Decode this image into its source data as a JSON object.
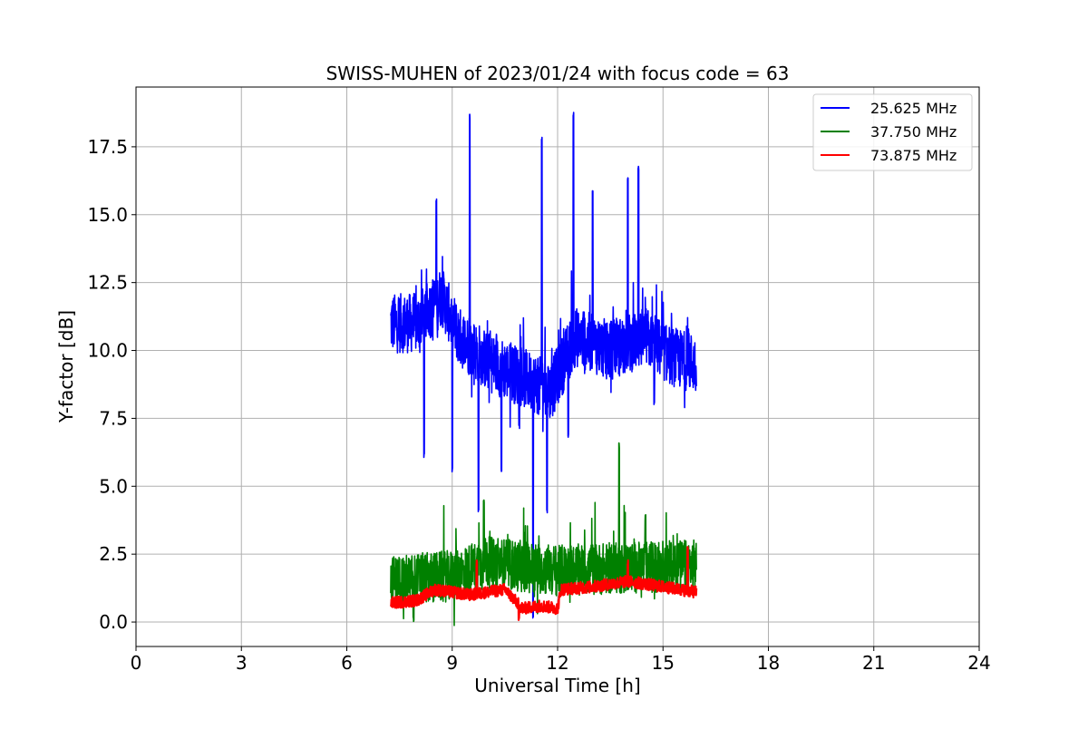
{
  "chart_data": {
    "type": "line",
    "title": "SWISS-MUHEN of 2023/01/24 with focus code = 63",
    "xlabel": "Universal Time [h]",
    "ylabel": "Y-factor [dB]",
    "xlim": [
      0,
      24
    ],
    "ylim": [
      -0.9,
      19.7
    ],
    "x_ticks": [
      0,
      3,
      6,
      9,
      12,
      15,
      18,
      21,
      24
    ],
    "x_tick_labels": [
      "0",
      "3",
      "6",
      "9",
      "12",
      "15",
      "18",
      "21",
      "24"
    ],
    "y_ticks": [
      0,
      2.5,
      5,
      7.5,
      10,
      12.5,
      15,
      17.5
    ],
    "y_tick_labels": [
      "0.0",
      "2.5",
      "5.0",
      "7.5",
      "10.0",
      "12.5",
      "15.0",
      "17.5"
    ],
    "grid": true,
    "legend_position": "top-right",
    "series": [
      {
        "name": "25.625 MHz",
        "color": "#0000ff",
        "x_range": [
          7.25,
          15.95
        ],
        "baseline": [
          [
            7.25,
            11.0
          ],
          [
            8.0,
            11.0
          ],
          [
            8.7,
            12.0
          ],
          [
            9.2,
            10.5
          ],
          [
            10.0,
            9.6
          ],
          [
            11.0,
            9.0
          ],
          [
            11.8,
            8.5
          ],
          [
            12.5,
            10.5
          ],
          [
            13.5,
            10.0
          ],
          [
            14.5,
            10.5
          ],
          [
            15.2,
            9.8
          ],
          [
            15.95,
            9.5
          ]
        ],
        "peaks": [
          [
            8.55,
            15.6
          ],
          [
            9.5,
            18.7
          ],
          [
            11.55,
            17.9
          ],
          [
            12.45,
            18.8
          ],
          [
            13.0,
            16.0
          ],
          [
            14.3,
            16.8
          ],
          [
            14.0,
            16.5
          ]
        ],
        "dips": [
          [
            8.2,
            6.0
          ],
          [
            9.0,
            5.5
          ],
          [
            9.75,
            4.0
          ],
          [
            10.4,
            5.5
          ],
          [
            11.3,
            0.1
          ],
          [
            11.7,
            4.0
          ],
          [
            12.3,
            6.8
          ],
          [
            14.75,
            8.0
          ]
        ]
      },
      {
        "name": "37.750 MHz",
        "color": "#008000",
        "x_range": [
          7.25,
          15.95
        ],
        "baseline": [
          [
            7.25,
            1.5
          ],
          [
            9.0,
            1.7
          ],
          [
            10.0,
            2.2
          ],
          [
            12.0,
            1.9
          ],
          [
            14.0,
            2.0
          ],
          [
            15.95,
            2.1
          ]
        ],
        "peaks": [
          [
            13.75,
            6.6
          ],
          [
            9.9,
            4.5
          ],
          [
            14.5,
            4.0
          ]
        ],
        "dips": [
          [
            7.9,
            0.0
          ]
        ]
      },
      {
        "name": "73.875 MHz",
        "color": "#ff0000",
        "x_range": [
          7.25,
          15.95
        ],
        "baseline": [
          [
            7.25,
            0.7
          ],
          [
            8.0,
            0.8
          ],
          [
            8.5,
            1.2
          ],
          [
            9.5,
            1.0
          ],
          [
            10.5,
            1.2
          ],
          [
            11.0,
            0.5
          ],
          [
            11.5,
            0.6
          ],
          [
            12.0,
            0.5
          ],
          [
            12.1,
            1.2
          ],
          [
            13.0,
            1.3
          ],
          [
            14.0,
            1.5
          ],
          [
            15.0,
            1.3
          ],
          [
            15.95,
            1.1
          ]
        ],
        "peaks": [
          [
            9.7,
            2.3
          ],
          [
            15.7,
            2.8
          ],
          [
            14.0,
            2.3
          ]
        ],
        "dips": [
          [
            10.9,
            0.0
          ]
        ]
      }
    ]
  }
}
